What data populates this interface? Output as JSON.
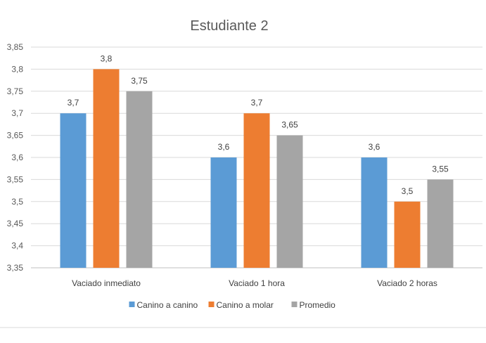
{
  "chart_data": {
    "type": "bar",
    "title": "Estudiante 2",
    "xlabel": "",
    "ylabel": "",
    "categories": [
      "Vaciado inmediato",
      "Vaciado 1 hora",
      "Vaciado 2 horas"
    ],
    "series": [
      {
        "name": "Canino a canino",
        "values": [
          3.7,
          3.6,
          3.6
        ],
        "labels": [
          "3,7",
          "3,6",
          "3,6"
        ],
        "color": "#5b9bd5"
      },
      {
        "name": "Canino a molar",
        "values": [
          3.8,
          3.7,
          3.5
        ],
        "labels": [
          "3,8",
          "3,7",
          "3,5"
        ],
        "color": "#ed7d31"
      },
      {
        "name": "Promedio",
        "values": [
          3.75,
          3.65,
          3.55
        ],
        "labels": [
          "3,75",
          "3,65",
          "3,55"
        ],
        "color": "#a5a5a5"
      }
    ],
    "ylim": [
      3.35,
      3.85
    ],
    "yticks": [
      3.35,
      3.4,
      3.45,
      3.5,
      3.55,
      3.6,
      3.65,
      3.7,
      3.75,
      3.8,
      3.85
    ],
    "ytick_labels": [
      "3,35",
      "3,4",
      "3,45",
      "3,5",
      "3,55",
      "3,6",
      "3,65",
      "3,7",
      "3,75",
      "3,8",
      "3,85"
    ],
    "grid": true,
    "legend_position": "bottom",
    "gridline_color": "#d9d9d9"
  }
}
